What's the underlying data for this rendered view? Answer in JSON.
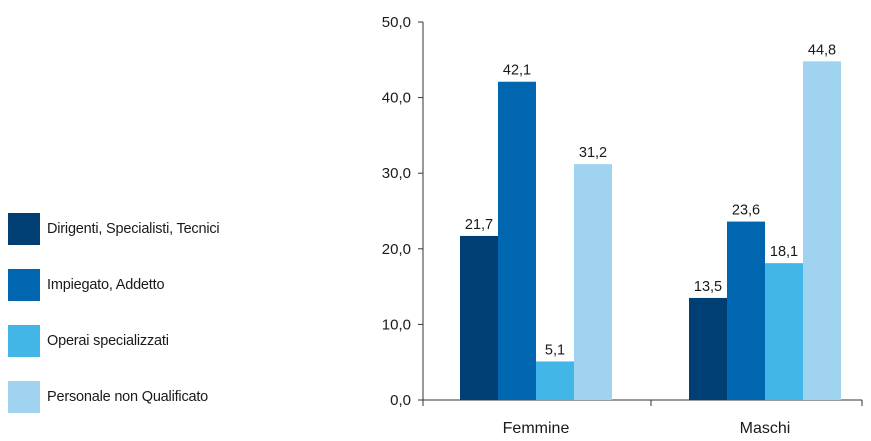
{
  "chart_data": {
    "type": "bar",
    "categories": [
      "Femmine",
      "Maschi"
    ],
    "series": [
      {
        "name": "Dirigenti, Specialisti, Tecnici",
        "color": "#003f73",
        "values": [
          21.7,
          13.5
        ],
        "labels": [
          "21,7",
          "13,5"
        ]
      },
      {
        "name": "Impiegato, Addetto",
        "color": "#0066b0",
        "values": [
          42.1,
          23.6
        ],
        "labels": [
          "42,1",
          "23,6"
        ]
      },
      {
        "name": "Operai specializzati",
        "color": "#42b6e6",
        "values": [
          5.1,
          18.1
        ],
        "labels": [
          "5,1",
          "18,1"
        ]
      },
      {
        "name": "Personale non Qualificato",
        "color": "#9fd3f0",
        "values": [
          31.2,
          44.8
        ],
        "labels": [
          "31,2",
          "44,8"
        ]
      }
    ],
    "yticks": [
      0,
      10,
      20,
      30,
      40,
      50
    ],
    "ytick_labels": [
      "0,0",
      "10,0",
      "20,0",
      "30,0",
      "40,0",
      "50,0"
    ],
    "ylim": [
      0,
      50
    ],
    "legend_position": "left",
    "grid": false,
    "title": "",
    "xlabel": "",
    "ylabel": ""
  }
}
